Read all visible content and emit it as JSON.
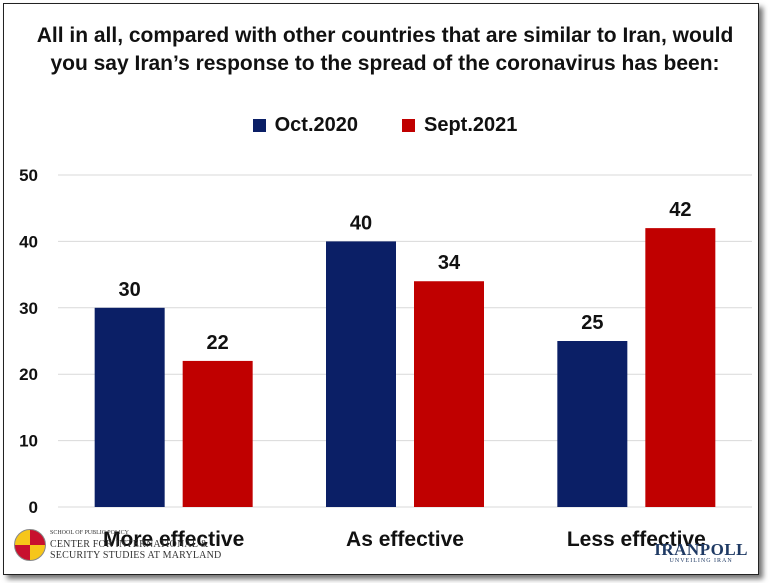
{
  "chart_data": {
    "type": "bar",
    "title": "All in all, compared with other countries that are similar to Iran, would you say Iran’s response to the spread of the coronavirus has been:",
    "title_lines": [
      "All in all, compared with other countries that are similar to Iran, would",
      "you say Iran’s response to the spread of the coronavirus has been:"
    ],
    "categories": [
      "More effective",
      "As effective",
      "Less effective"
    ],
    "series": [
      {
        "name": "Oct.2020",
        "color": "#0b1f66",
        "values": [
          30,
          40,
          25
        ]
      },
      {
        "name": "Sept.2021",
        "color": "#c00000",
        "values": [
          22,
          34,
          42
        ]
      }
    ],
    "ylim": [
      0,
      50
    ],
    "yticks": [
      0,
      10,
      20,
      30,
      40,
      50
    ],
    "grid": true,
    "legend_position": "top-center",
    "xlabel": "",
    "ylabel": ""
  },
  "logos": {
    "left_small": "SCHOOL OF PUBLIC POLICY",
    "left_line1": "CENTER FOR INTERNATIONAL &",
    "left_line2": "SECURITY STUDIES AT MARYLAND",
    "right_name": "IRANPOLL",
    "right_tagline": "UNVEILING IRAN"
  }
}
